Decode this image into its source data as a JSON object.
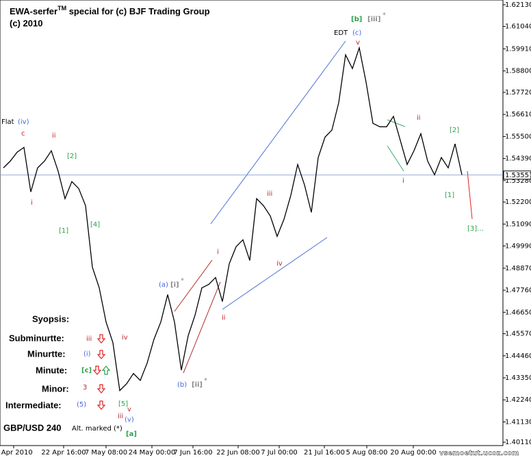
{
  "chart_data": {
    "type": "line",
    "title": "EWA-serfer",
    "title_mark": "TM",
    "title_rest": " special for (c) BJF Trading Group",
    "subtitle": "(c) 2010",
    "symbol": "GBP/USD 240",
    "note": "Alt. marked (*)",
    "watermark": "vsemoetut.ucoz.com",
    "color": "#000000",
    "values": [
      1.5392,
      1.5426,
      1.5471,
      1.5495,
      1.5271,
      1.5392,
      1.5426,
      1.5478,
      1.5375,
      1.5237,
      1.5323,
      1.5288,
      1.5202,
      1.4892,
      1.4788,
      1.4616,
      1.4512,
      1.4271,
      1.4305,
      1.4357,
      1.4322,
      1.4409,
      1.4529,
      1.4616,
      1.4754,
      1.4616,
      1.4374,
      1.4547,
      1.465,
      1.4788,
      1.4805,
      1.484,
      1.4719,
      1.4909,
      1.4995,
      1.503,
      1.4926,
      1.5237,
      1.5202,
      1.515,
      1.5047,
      1.5133,
      1.5254,
      1.5409,
      1.5306,
      1.5168,
      1.5444,
      1.5547,
      1.5582,
      1.572,
      1.5961,
      1.5892,
      1.5996,
      1.5823,
      1.5616,
      1.5599,
      1.5599,
      1.5651,
      1.553,
      1.5409,
      1.5478,
      1.5564,
      1.5426,
      1.5357,
      1.5444,
      1.5392,
      1.5513,
      1.5357
    ],
    "current_price": {
      "value": 1.53557,
      "label": "1.53557"
    },
    "ylim": [
      1.3994,
      1.6237
    ],
    "yticks": [
      {
        "value": 1.6213,
        "label": "1.62130"
      },
      {
        "value": 1.6104,
        "label": "1.61040"
      },
      {
        "value": 1.5991,
        "label": "1.59910"
      },
      {
        "value": 1.588,
        "label": "1.58800"
      },
      {
        "value": 1.5772,
        "label": "1.57720"
      },
      {
        "value": 1.5661,
        "label": "1.56610"
      },
      {
        "value": 1.555,
        "label": "1.55500"
      },
      {
        "value": 1.5439,
        "label": "1.54390"
      },
      {
        "value": 1.5328,
        "label": "1.53280"
      },
      {
        "value": 1.522,
        "label": "1.52200"
      },
      {
        "value": 1.5109,
        "label": "1.51090"
      },
      {
        "value": 1.4999,
        "label": "1.49990"
      },
      {
        "value": 1.4887,
        "label": "1.48870"
      },
      {
        "value": 1.4776,
        "label": "1.47760"
      },
      {
        "value": 1.4665,
        "label": "1.46650"
      },
      {
        "value": 1.4557,
        "label": "1.45570"
      },
      {
        "value": 1.4446,
        "label": "1.44460"
      },
      {
        "value": 1.4335,
        "label": "1.43350"
      },
      {
        "value": 1.4224,
        "label": "1.42240"
      },
      {
        "value": 1.4113,
        "label": "1.41130"
      },
      {
        "value": 1.4011,
        "label": "1.40110"
      }
    ],
    "xticks": [
      {
        "value": 1.5,
        "label": "7 Apr 2010"
      },
      {
        "value": 8.8,
        "label": "22 Apr 16:00"
      },
      {
        "value": 15,
        "label": "7 May 08:00"
      },
      {
        "value": 21.7,
        "label": "24 May 00:00"
      },
      {
        "value": 27.7,
        "label": "7 Jun 16:00"
      },
      {
        "value": 34.3,
        "label": "22 Jun 08:00"
      },
      {
        "value": 40.3,
        "label": "7 Jul 00:00"
      },
      {
        "value": 46.9,
        "label": "21 Jul 16:00"
      },
      {
        "value": 53.1,
        "label": "5 Aug 08:00"
      },
      {
        "value": 59.9,
        "label": "20 Aug 00:00"
      }
    ],
    "annotations": [
      "EDT",
      "(c)",
      "[b]",
      "[iii]",
      "*",
      "v",
      "Flat",
      "(iv)",
      "c",
      "ii",
      "[2]",
      "i",
      "[1]",
      "[4]",
      "iii",
      "iv",
      "i",
      "ii",
      "(a)",
      "[i]",
      "*",
      "(b)",
      "[ii]",
      "*",
      "ii",
      "[2]",
      "i",
      "[1]",
      "[3]...",
      "iii",
      "(i)",
      "iv",
      "[5]",
      "v",
      "iii",
      "(v)",
      "[a]"
    ],
    "legend": [
      "Syopsis:",
      "Subminurtte:",
      "Minurtte:",
      "Minute:",
      "[c]",
      "Minor:",
      "3",
      "Intermediate:",
      "(5)"
    ]
  }
}
